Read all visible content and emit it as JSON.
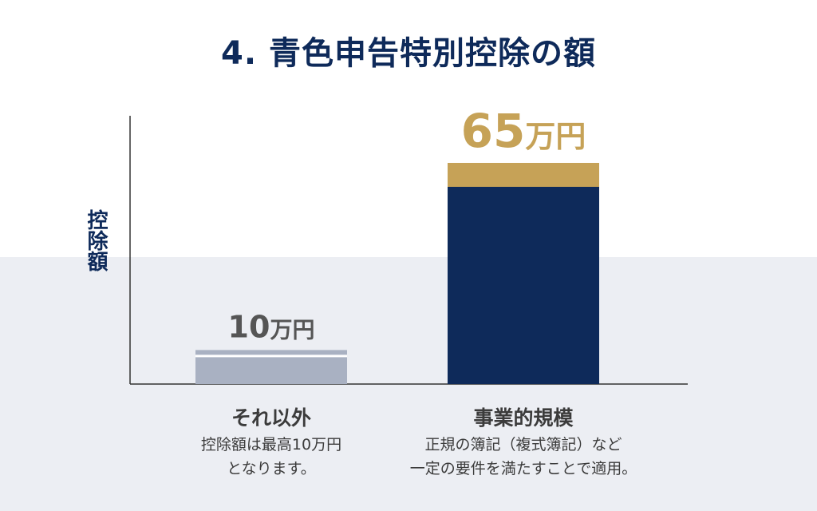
{
  "title": "4. 青色申告特別控除の額",
  "chart_data": {
    "type": "bar",
    "title": "4. 青色申告特別控除の額",
    "ylabel": "控除額",
    "xlabel": "",
    "ylim": [
      0,
      65
    ],
    "unit": "万円",
    "categories": [
      "それ以外",
      "事業的規模"
    ],
    "values": [
      10,
      65
    ],
    "value_labels": [
      {
        "number": "10",
        "unit": "万円"
      },
      {
        "number": "65",
        "unit": "万円"
      }
    ],
    "descriptions": [
      "控除額は最高10万円\nとなります。",
      "正規の簿記（複式簿記）など\n一定の要件を満たすことで適用。"
    ],
    "colors": {
      "bar_other": "#a9b1c2",
      "bar_business": "#0e2a5a",
      "cap_business": "#c6a257",
      "label_gold": "#c6a257",
      "label_gray": "#555555",
      "title": "#0e2a5a",
      "axis": "#333333"
    }
  }
}
